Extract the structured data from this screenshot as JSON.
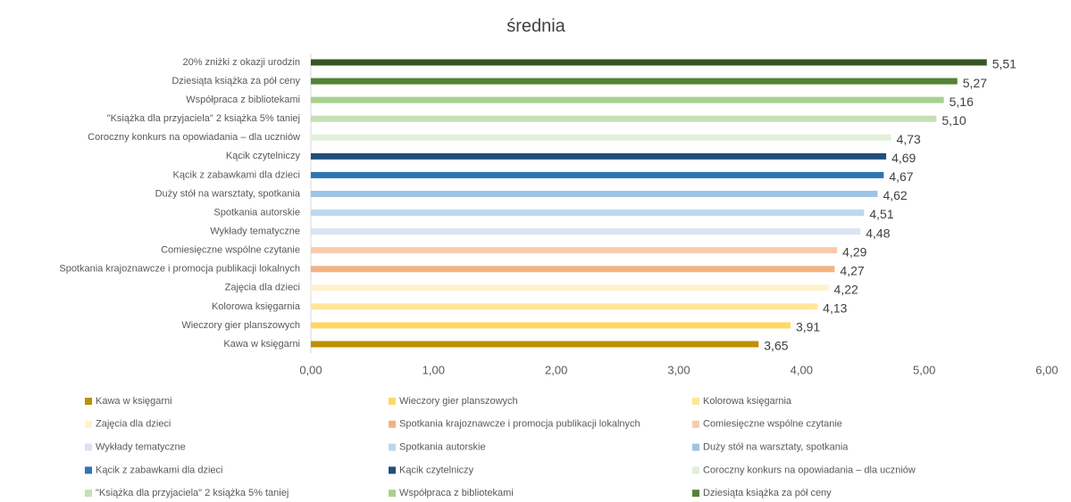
{
  "chart_data": {
    "type": "hbar",
    "title": "średnia",
    "categories": [
      "Kawa w księgarni",
      "Wieczory gier planszowych",
      "Kolorowa księgarnia",
      "Zajęcia dla dzieci",
      "Spotkania krajoznawcze i promocja publikacji lokalnych",
      "Comiesięczne wspólne czytanie",
      "Wykłady tematyczne",
      "Spotkania autorskie",
      "Duży stół na warsztaty, spotkania",
      "Kącik z zabawkami dla dzieci",
      "Kącik czytelniczy",
      "Coroczny konkurs na opowiadania – dla uczniów",
      "\"Książka dla przyjaciela\" 2 książka 5% taniej",
      "Współpraca z bibliotekami",
      "Dziesiąta książka za pół ceny",
      "20% zniżki z okazji urodzin"
    ],
    "values": [
      3.65,
      3.91,
      4.13,
      4.22,
      4.27,
      4.29,
      4.48,
      4.51,
      4.62,
      4.67,
      4.69,
      4.73,
      5.1,
      5.16,
      5.27,
      5.51
    ],
    "value_labels": [
      "3,65",
      "3,91",
      "4,13",
      "4,22",
      "4,27",
      "4,29",
      "4,48",
      "4,51",
      "4,62",
      "4,67",
      "4,69",
      "4,73",
      "5,10",
      "5,16",
      "5,27",
      "5,51"
    ],
    "colors": [
      "#bf9000",
      "#ffd966",
      "#ffe699",
      "#fff2cc",
      "#f4b183",
      "#f8cbad",
      "#dae3f3",
      "#bdd7ee",
      "#9dc3e6",
      "#2e75b6",
      "#1f4e79",
      "#e2f0d9",
      "#c5e0b4",
      "#a9d18e",
      "#548235",
      "#375623"
    ],
    "xlim": [
      0,
      6
    ],
    "xticks": [
      {
        "value": 0,
        "label": "0,00"
      },
      {
        "value": 1,
        "label": "1,00"
      },
      {
        "value": 2,
        "label": "2,00"
      },
      {
        "value": 3,
        "label": "3,00"
      },
      {
        "value": 4,
        "label": "4,00"
      },
      {
        "value": 5,
        "label": "5,00"
      },
      {
        "value": 6,
        "label": "6,00"
      }
    ],
    "grid": false,
    "legend": "bottom"
  }
}
